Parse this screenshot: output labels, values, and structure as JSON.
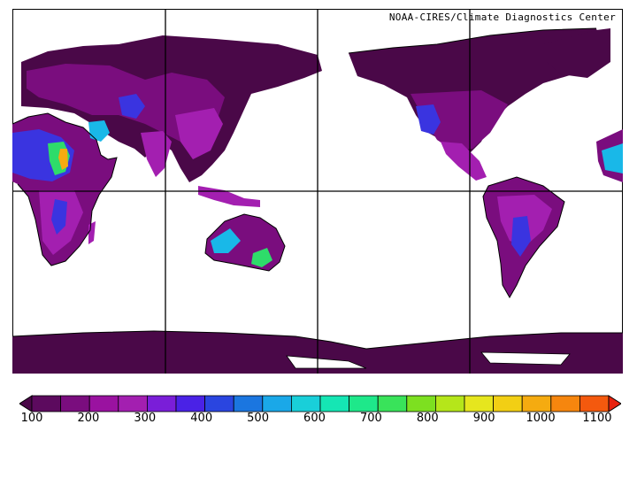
{
  "credit": "NOAA-CIRES/Climate Diagnostics Center",
  "colorbar": {
    "colors": [
      "#4a0848",
      "#5c0a5e",
      "#7a0d7e",
      "#9a12a0",
      "#a31fb0",
      "#7a1ed8",
      "#4a22e6",
      "#2a45e0",
      "#1b76e0",
      "#1aa8e8",
      "#19cfd9",
      "#15e6b4",
      "#1ee88a",
      "#39e35a",
      "#7de020",
      "#b5e61a",
      "#e6e61e",
      "#f2cf14",
      "#f5ab10",
      "#f6860e",
      "#f4590e",
      "#e8220f"
    ],
    "labels": [
      "100",
      "200",
      "300",
      "400",
      "500",
      "600",
      "700",
      "800",
      "900",
      "1000",
      "1100"
    ]
  },
  "land_colors": {
    "base": "#4a0848",
    "mid": "#7a0d7e",
    "light": "#a31fb0",
    "blue": "#3a34e0",
    "cyan": "#19b8e8",
    "green": "#2edc6a",
    "yellow": "#e6e61e",
    "orange": "#f5ab10",
    "antarctica": "#4a0848"
  }
}
